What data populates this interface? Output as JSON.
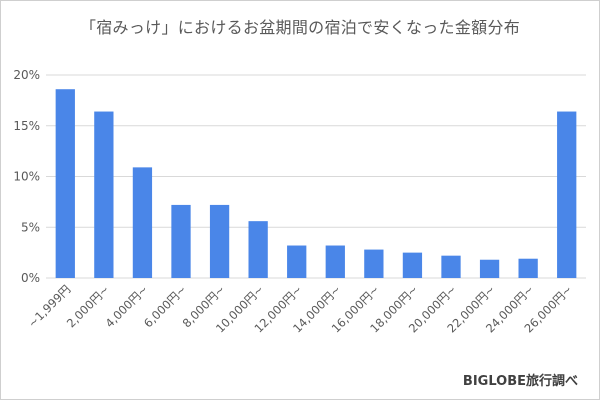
{
  "title": "「宿みっけ」におけるお盆期間の宿泊で安くなった金額分布",
  "source": "BIGLOBE旅行調べ",
  "colors": {
    "bar": "#4a86e8",
    "grid": "#d9d9d9",
    "text": "#595959"
  },
  "chart_data": {
    "type": "bar",
    "title": "「宿みっけ」におけるお盆期間の宿泊で安くなった金額分布",
    "categories": [
      "~1,999円",
      "2,000円~",
      "4,000円~",
      "6,000円~",
      "8,000円~",
      "10,000円~",
      "12,000円~",
      "14,000円~",
      "16,000円~",
      "18,000円~",
      "20,000円~",
      "22,000円~",
      "24,000円~",
      "26,000円~"
    ],
    "values": [
      18.6,
      16.4,
      10.9,
      7.2,
      7.2,
      5.6,
      3.2,
      3.2,
      2.8,
      2.5,
      2.2,
      1.8,
      1.9,
      16.4
    ],
    "value_unit": "%",
    "ylim": [
      0,
      20
    ],
    "yticks": [
      0,
      5,
      10,
      15,
      20
    ],
    "ytick_labels": [
      "0%",
      "5%",
      "10%",
      "15%",
      "20%"
    ],
    "grid": true,
    "legend": "none"
  }
}
